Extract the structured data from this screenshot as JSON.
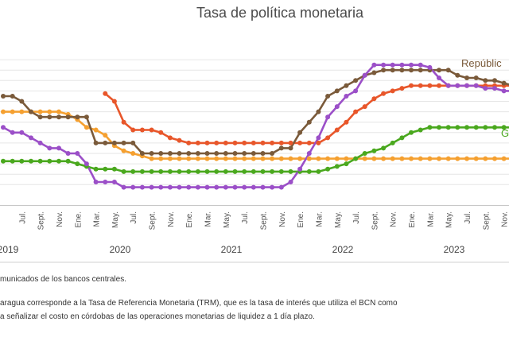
{
  "chart_data": {
    "type": "line",
    "title": "Tasa de política monetaria",
    "xlabel": "",
    "ylabel": "",
    "ylim": [
      0,
      14
    ],
    "grid": true,
    "legend": "inline labels at right end of lines",
    "start_month": "2019-05",
    "months": [
      "2019-05",
      "2019-06",
      "2019-07",
      "2019-08",
      "2019-09",
      "2019-10",
      "2019-11",
      "2019-12",
      "2020-01",
      "2020-02",
      "2020-03",
      "2020-04",
      "2020-05",
      "2020-06",
      "2020-07",
      "2020-08",
      "2020-09",
      "2020-10",
      "2020-11",
      "2020-12",
      "2021-01",
      "2021-02",
      "2021-03",
      "2021-04",
      "2021-05",
      "2021-06",
      "2021-07",
      "2021-08",
      "2021-09",
      "2021-10",
      "2021-11",
      "2021-12",
      "2022-01",
      "2022-02",
      "2022-03",
      "2022-04",
      "2022-05",
      "2022-06",
      "2022-07",
      "2022-08",
      "2022-09",
      "2022-10",
      "2022-11",
      "2022-12",
      "2023-01",
      "2023-02",
      "2023-03",
      "2023-04",
      "2023-05",
      "2023-06",
      "2023-07",
      "2023-08",
      "2023-09",
      "2023-10",
      "2023-11",
      "2023-12",
      "2024-01"
    ],
    "tick_months": [
      "Jul.",
      "Sept.",
      "Nov.",
      "Ene.",
      "Mar.",
      "May.",
      "Jul.",
      "Sept.",
      "Nov.",
      "Ene.",
      "Mar.",
      "May.",
      "Jul.",
      "Sept.",
      "Nov.",
      "Ene.",
      "Mar.",
      "May.",
      "Jul.",
      "Sept.",
      "Nov.",
      "Ene.",
      "Mar.",
      "May.",
      "Jul.",
      "Sept.",
      "Nov."
    ],
    "years": [
      "2019",
      "2020",
      "2021",
      "2022",
      "2023"
    ],
    "series": [
      {
        "name": "República",
        "color": "#7a5a3a",
        "label_visible": "Repúblic",
        "values": [
          10.5,
          10.5,
          10.0,
          9.0,
          8.5,
          8.5,
          8.5,
          8.5,
          8.5,
          8.5,
          6.0,
          6.0,
          6.0,
          6.0,
          6.0,
          5.0,
          5.0,
          5.0,
          5.0,
          5.0,
          5.0,
          5.0,
          5.0,
          5.0,
          5.0,
          5.0,
          5.0,
          5.0,
          5.0,
          5.0,
          5.5,
          5.5,
          7.0,
          8.0,
          9.0,
          10.5,
          11.0,
          11.5,
          12.0,
          12.5,
          12.75,
          13.0,
          13.0,
          13.0,
          13.0,
          13.0,
          13.0,
          13.0,
          13.0,
          12.5,
          12.25,
          12.25,
          12.0,
          12.0,
          11.75,
          11.5,
          11.5
        ]
      },
      {
        "name": "",
        "color": "#e8562a",
        "values": [
          null,
          null,
          null,
          null,
          null,
          null,
          null,
          null,
          null,
          null,
          null,
          10.75,
          10.0,
          8.0,
          7.25,
          7.25,
          7.25,
          7.0,
          6.5,
          6.25,
          6.0,
          6.0,
          6.0,
          6.0,
          6.0,
          6.0,
          6.0,
          6.0,
          6.0,
          6.0,
          6.0,
          6.0,
          6.0,
          6.0,
          6.0,
          6.5,
          7.25,
          8.0,
          9.0,
          9.5,
          10.25,
          10.75,
          11.0,
          11.25,
          11.5,
          11.5,
          11.5,
          11.5,
          11.5,
          11.5,
          11.5,
          11.5,
          11.5,
          11.5,
          11.5,
          11.5,
          11.5
        ]
      },
      {
        "name": "",
        "color": "#9b4fc8",
        "values": [
          7.5,
          7.0,
          7.0,
          6.5,
          6.0,
          5.5,
          5.5,
          5.0,
          5.0,
          4.0,
          2.25,
          2.25,
          2.25,
          1.75,
          1.75,
          1.75,
          1.75,
          1.75,
          1.75,
          1.75,
          1.75,
          1.75,
          1.75,
          1.75,
          1.75,
          1.75,
          1.75,
          1.75,
          1.75,
          1.75,
          1.75,
          2.25,
          3.5,
          5.0,
          6.5,
          8.5,
          9.5,
          10.5,
          11.0,
          12.5,
          13.5,
          13.5,
          13.5,
          13.5,
          13.5,
          13.5,
          13.25,
          12.25,
          11.5,
          11.5,
          11.5,
          11.5,
          11.25,
          11.25,
          11.0,
          11.0,
          11.0
        ]
      },
      {
        "name": "G",
        "color": "#4aa81e",
        "label_visible": "G",
        "values": [
          4.25,
          4.25,
          4.25,
          4.25,
          4.25,
          4.25,
          4.25,
          4.25,
          4.0,
          3.75,
          3.5,
          3.5,
          3.5,
          3.25,
          3.25,
          3.25,
          3.25,
          3.25,
          3.25,
          3.25,
          3.25,
          3.25,
          3.25,
          3.25,
          3.25,
          3.25,
          3.25,
          3.25,
          3.25,
          3.25,
          3.25,
          3.25,
          3.25,
          3.25,
          3.25,
          3.5,
          3.75,
          4.0,
          4.5,
          5.0,
          5.25,
          5.5,
          6.0,
          6.5,
          7.0,
          7.25,
          7.5,
          7.5,
          7.5,
          7.5,
          7.5,
          7.5,
          7.5,
          7.5,
          7.5,
          7.5,
          7.5
        ]
      },
      {
        "name": "",
        "color": "#f5a030",
        "label_visible": "",
        "values": [
          9.0,
          9.0,
          9.0,
          9.0,
          9.0,
          9.0,
          9.0,
          8.75,
          8.25,
          7.5,
          7.25,
          6.75,
          5.75,
          5.25,
          5.0,
          4.75,
          4.5,
          4.5,
          4.5,
          4.5,
          4.5,
          4.5,
          4.5,
          4.5,
          4.5,
          4.5,
          4.5,
          4.5,
          4.5,
          4.5,
          4.5,
          4.5,
          4.5,
          4.5,
          4.5,
          4.5,
          4.5,
          4.5,
          4.5,
          4.5,
          4.5,
          4.5,
          4.5,
          4.5,
          4.5,
          4.5,
          4.5,
          4.5,
          4.5,
          4.5,
          4.5,
          4.5,
          4.5,
          4.5,
          4.5,
          4.5,
          4.5
        ]
      }
    ]
  },
  "notes": {
    "source": "municados de los bancos centrales.",
    "note_line1": "aragua corresponde a la Tasa de Referencia Monetaria (TRM), que es la tasa de interés que utiliza el BCN como",
    "note_line2": "a señalizar el costo en córdobas de las operaciones monetarias de liquidez a 1 día plazo."
  }
}
